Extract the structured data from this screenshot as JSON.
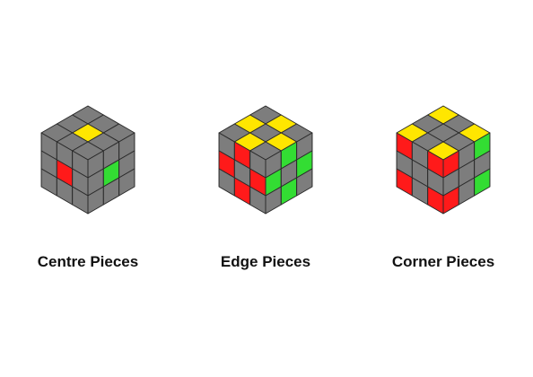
{
  "colors": {
    "grey": "#7d7d7d",
    "yellow": "#ffe600",
    "red": "#ff1a1a",
    "green": "#33dd33",
    "edge": "#2a2a2a",
    "background": "#ffffff"
  },
  "cubes": [
    {
      "caption": "Centre Pieces",
      "top": [
        [
          "grey",
          "grey",
          "grey"
        ],
        [
          "grey",
          "yellow",
          "grey"
        ],
        [
          "grey",
          "grey",
          "grey"
        ]
      ],
      "left": [
        [
          "grey",
          "grey",
          "grey"
        ],
        [
          "grey",
          "red",
          "grey"
        ],
        [
          "grey",
          "grey",
          "grey"
        ]
      ],
      "right": [
        [
          "grey",
          "grey",
          "grey"
        ],
        [
          "grey",
          "green",
          "grey"
        ],
        [
          "grey",
          "grey",
          "grey"
        ]
      ]
    },
    {
      "caption": "Edge Pieces",
      "top": [
        [
          "grey",
          "yellow",
          "grey"
        ],
        [
          "yellow",
          "grey",
          "yellow"
        ],
        [
          "grey",
          "yellow",
          "grey"
        ]
      ],
      "left": [
        [
          "grey",
          "red",
          "grey"
        ],
        [
          "red",
          "grey",
          "red"
        ],
        [
          "grey",
          "red",
          "grey"
        ]
      ],
      "right": [
        [
          "grey",
          "green",
          "grey"
        ],
        [
          "green",
          "grey",
          "green"
        ],
        [
          "grey",
          "green",
          "grey"
        ]
      ]
    },
    {
      "caption": "Corner Pieces",
      "top": [
        [
          "yellow",
          "grey",
          "yellow"
        ],
        [
          "grey",
          "grey",
          "grey"
        ],
        [
          "yellow",
          "grey",
          "yellow"
        ]
      ],
      "left": [
        [
          "red",
          "grey",
          "red"
        ],
        [
          "grey",
          "grey",
          "grey"
        ],
        [
          "red",
          "grey",
          "red"
        ]
      ],
      "right": [
        [
          "red",
          "grey",
          "green"
        ],
        [
          "grey",
          "grey",
          "grey"
        ],
        [
          "red",
          "grey",
          "green"
        ]
      ]
    }
  ]
}
